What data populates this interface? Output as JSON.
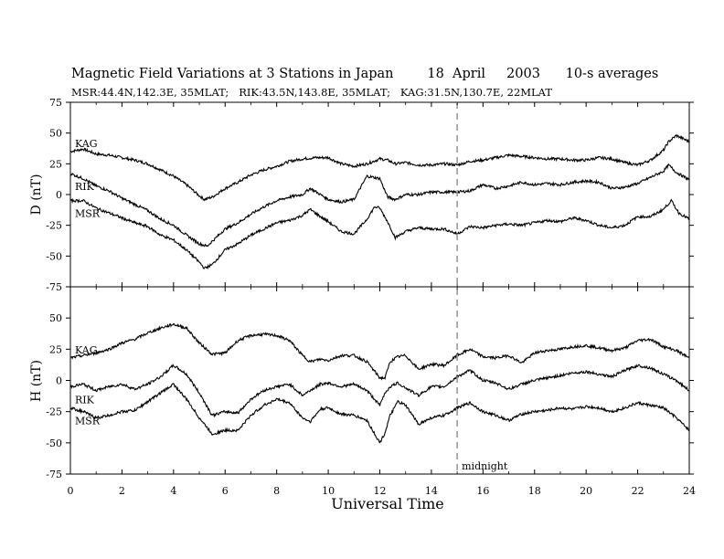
{
  "chart_data": [
    {
      "type": "line",
      "title": "Magnetic Field Variations at 3 Stations in Japan        18  April     2003      10-s averages",
      "subtitle": "MSR:44.4N,142.3E, 35MLAT;   RIK:43.5N,143.8E, 35MLAT;   KAG:31.5N,130.7E, 22MLAT",
      "panel": "D",
      "ylabel": "D (nT)",
      "ylim": [
        -75,
        75
      ],
      "yticks": [
        "75",
        "50",
        "25",
        "0",
        "-25",
        "-50",
        "-75"
      ],
      "xlim": [
        0,
        24
      ],
      "series": [
        {
          "name": "KAG",
          "x": [
            0,
            0.5,
            1,
            1.5,
            2,
            2.5,
            3,
            3.5,
            4,
            4.5,
            5,
            5.2,
            5.5,
            6,
            6.5,
            7,
            7.5,
            8,
            8.5,
            9,
            9.5,
            10,
            10.5,
            11,
            11.5,
            12,
            12.3,
            12.6,
            13,
            13.5,
            14,
            14.5,
            15,
            15.5,
            16,
            16.5,
            17,
            17.5,
            18,
            18.5,
            19,
            19.5,
            20,
            20.5,
            21,
            21.5,
            22,
            22.5,
            23,
            23.2,
            23.5,
            24
          ],
          "y": [
            35,
            37,
            33,
            32,
            30,
            28,
            25,
            20,
            15,
            8,
            -1,
            -4,
            -2,
            5,
            10,
            16,
            20,
            23,
            27,
            29,
            30,
            30,
            25,
            23,
            25,
            29,
            28,
            25,
            26,
            24,
            24,
            25,
            24,
            27,
            28,
            30,
            32,
            31,
            30,
            29,
            29,
            28,
            28,
            30,
            29,
            26,
            24,
            28,
            36,
            43,
            48,
            43
          ]
        },
        {
          "name": "RIK",
          "x": [
            0,
            0.5,
            1,
            1.5,
            2,
            2.5,
            3,
            3.5,
            4,
            4.5,
            5,
            5.3,
            5.6,
            6,
            6.5,
            7,
            7.5,
            8,
            8.5,
            9,
            9.3,
            9.7,
            10,
            10.5,
            11,
            11.5,
            12,
            12.3,
            12.6,
            13,
            13.5,
            14,
            14.5,
            15,
            15.5,
            16,
            16.5,
            17,
            17.5,
            18,
            18.5,
            19,
            19.5,
            20,
            20.5,
            21,
            21.5,
            22,
            22.5,
            23,
            23.2,
            23.5,
            24
          ],
          "y": [
            17,
            13,
            7,
            3,
            -3,
            -8,
            -13,
            -20,
            -25,
            -33,
            -40,
            -42,
            -36,
            -28,
            -23,
            -16,
            -10,
            -5,
            -2,
            0,
            5,
            0,
            -4,
            -6,
            -4,
            15,
            13,
            -2,
            -4,
            0,
            0,
            2,
            2,
            2,
            3,
            8,
            5,
            7,
            10,
            8,
            9,
            8,
            10,
            11,
            10,
            5,
            6,
            9,
            14,
            19,
            24,
            18,
            12
          ]
        },
        {
          "name": "MSR",
          "x": [
            0,
            0.5,
            1,
            1.5,
            2,
            2.5,
            3,
            3.5,
            4,
            4.5,
            5,
            5.2,
            5.5,
            6,
            6.5,
            7,
            7.5,
            8,
            8.5,
            9,
            9.3,
            9.7,
            10,
            10.5,
            11,
            11.5,
            11.8,
            12,
            12.3,
            12.6,
            13,
            13.5,
            14,
            14.5,
            15,
            15.5,
            16,
            16.5,
            17,
            17.5,
            18,
            18.5,
            19,
            19.5,
            20,
            20.5,
            21,
            21.5,
            22,
            22.5,
            23,
            23.3,
            23.6,
            24
          ],
          "y": [
            -5,
            -5,
            -11,
            -15,
            -19,
            -23,
            -26,
            -33,
            -37,
            -45,
            -55,
            -60,
            -57,
            -45,
            -40,
            -33,
            -28,
            -23,
            -21,
            -17,
            -12,
            -18,
            -22,
            -30,
            -32,
            -20,
            -10,
            -11,
            -22,
            -35,
            -30,
            -27,
            -28,
            -28,
            -32,
            -26,
            -27,
            -25,
            -24,
            -25,
            -23,
            -21,
            -22,
            -19,
            -21,
            -25,
            -27,
            -25,
            -18,
            -18,
            -12,
            -5,
            -15,
            -20
          ]
        }
      ]
    },
    {
      "type": "line",
      "panel": "H",
      "ylabel": "H (nT)",
      "xlabel": "Universal Time",
      "ylim": [
        -75,
        75
      ],
      "yticks": [
        "50",
        "25",
        "0",
        "-25",
        "-50",
        "-75"
      ],
      "xlim": [
        0,
        24
      ],
      "xticks": [
        "0",
        "2",
        "4",
        "6",
        "8",
        "10",
        "12",
        "14",
        "16",
        "18",
        "20",
        "22",
        "24"
      ],
      "annotation": {
        "x": 15,
        "text": "midnight",
        "style": "dashed vertical line"
      },
      "series": [
        {
          "name": "KAG",
          "x": [
            0,
            0.5,
            1,
            1.5,
            2,
            2.5,
            3,
            3.5,
            4,
            4.5,
            5,
            5.5,
            6,
            6.5,
            7,
            7.5,
            8,
            8.5,
            9,
            9.3,
            9.7,
            10,
            10.5,
            11,
            11.5,
            12,
            12.2,
            12.4,
            12.7,
            13,
            13.5,
            14,
            14.5,
            15,
            15.5,
            16,
            16.5,
            17,
            17.5,
            18,
            18.5,
            19,
            19.5,
            20,
            20.5,
            21,
            21.5,
            22,
            22.5,
            23,
            23.5,
            24
          ],
          "y": [
            18,
            20,
            22,
            25,
            30,
            33,
            38,
            42,
            45,
            42,
            30,
            21,
            22,
            32,
            36,
            37,
            36,
            32,
            20,
            15,
            17,
            16,
            20,
            20,
            15,
            2,
            2,
            15,
            19,
            20,
            9,
            13,
            12,
            20,
            25,
            19,
            18,
            20,
            14,
            22,
            24,
            25,
            27,
            28,
            26,
            24,
            26,
            32,
            33,
            27,
            24,
            18
          ]
        },
        {
          "name": "RIK",
          "x": [
            0,
            0.5,
            1,
            1.5,
            2,
            2.5,
            3,
            3.5,
            4,
            4.5,
            5,
            5.5,
            6,
            6.5,
            7,
            7.5,
            8,
            8.5,
            9,
            9.3,
            9.7,
            10,
            10.5,
            11,
            11.5,
            12,
            12.2,
            12.4,
            12.7,
            13,
            13.5,
            14,
            14.5,
            15,
            15.5,
            16,
            16.5,
            17,
            17.5,
            18,
            18.5,
            19,
            19.5,
            20,
            20.5,
            21,
            21.5,
            22,
            22.5,
            23,
            23.5,
            24
          ],
          "y": [
            -5,
            -3,
            -8,
            -5,
            -3,
            -7,
            -3,
            3,
            12,
            5,
            -10,
            -28,
            -25,
            -26,
            -15,
            -8,
            -5,
            -3,
            -12,
            -8,
            -3,
            -2,
            -5,
            -3,
            -8,
            -20,
            -10,
            -5,
            -2,
            -6,
            -12,
            -5,
            -5,
            3,
            8,
            0,
            -2,
            -7,
            -3,
            0,
            2,
            4,
            6,
            7,
            5,
            3,
            8,
            12,
            10,
            5,
            0,
            -8
          ]
        },
        {
          "name": "MSR",
          "x": [
            0,
            0.5,
            1,
            1.5,
            2,
            2.5,
            3,
            3.5,
            4,
            4.5,
            5,
            5.5,
            6,
            6.5,
            7,
            7.5,
            8,
            8.5,
            9,
            9.3,
            9.7,
            10,
            10.5,
            11,
            11.5,
            12,
            12.2,
            12.4,
            12.7,
            13,
            13.5,
            14,
            14.5,
            15,
            15.5,
            16,
            16.5,
            17,
            17.5,
            18,
            18.5,
            19,
            19.5,
            20,
            20.5,
            21,
            21.5,
            22,
            22.5,
            23,
            23.5,
            24
          ],
          "y": [
            -22,
            -25,
            -30,
            -28,
            -25,
            -24,
            -17,
            -10,
            -3,
            -15,
            -30,
            -43,
            -40,
            -40,
            -28,
            -20,
            -15,
            -18,
            -30,
            -33,
            -23,
            -22,
            -27,
            -28,
            -32,
            -50,
            -42,
            -28,
            -17,
            -20,
            -35,
            -30,
            -28,
            -22,
            -18,
            -25,
            -28,
            -32,
            -27,
            -25,
            -24,
            -22,
            -23,
            -21,
            -22,
            -25,
            -22,
            -18,
            -20,
            -22,
            -30,
            -40
          ]
        }
      ]
    }
  ]
}
